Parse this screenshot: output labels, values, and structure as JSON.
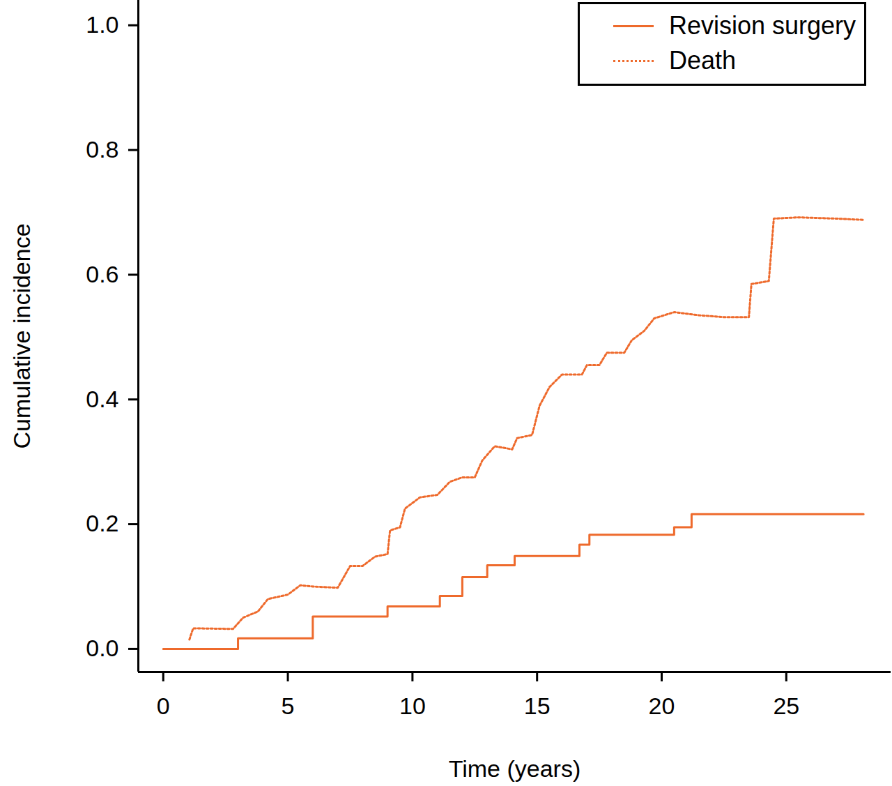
{
  "chart_data": {
    "type": "line",
    "xlabel": "Time (years)",
    "ylabel": "Cumulative incidence",
    "xlim": [
      -1,
      29.2
    ],
    "ylim": [
      -0.037,
      1.04
    ],
    "xticks": [
      0,
      5,
      10,
      15,
      20,
      25
    ],
    "yticks": [
      {
        "value": 0,
        "label": "0.0"
      },
      {
        "value": 0.2,
        "label": "0.2"
      },
      {
        "value": 0.4,
        "label": "0.4"
      },
      {
        "value": 0.6,
        "label": "0.6"
      },
      {
        "value": 0.8,
        "label": "0.8"
      },
      {
        "value": 1,
        "label": "1.0"
      }
    ],
    "grid": false,
    "legend": "top-right",
    "series": [
      {
        "name": "Revision surgery",
        "color": "#ee6a2c",
        "type": "step",
        "line_style": "solid",
        "x": [
          0,
          3.0,
          6.0,
          9.0,
          11.1,
          12.0,
          13.0,
          14.1,
          16.7,
          17.1,
          20.5,
          21.2,
          28.1
        ],
        "values": [
          0,
          0.017,
          0.052,
          0.068,
          0.085,
          0.115,
          0.134,
          0.149,
          0.167,
          0.183,
          0.195,
          0.216,
          0.216
        ]
      },
      {
        "name": "Death",
        "color": "#ee6a2c",
        "type": "line",
        "line_style": "dotted",
        "x": [
          1.05,
          1.2,
          2.8,
          3.2,
          3.8,
          4.2,
          5.0,
          5.5,
          6.0,
          7.0,
          7.5,
          8.0,
          8.5,
          9.0,
          9.1,
          9.5,
          9.7,
          10.3,
          11.0,
          11.5,
          12.0,
          12.5,
          12.8,
          13.3,
          14.0,
          14.2,
          14.8,
          15.1,
          15.5,
          16.0,
          16.8,
          17.0,
          17.5,
          17.8,
          18.5,
          18.8,
          19.3,
          19.7,
          20.5,
          21.5,
          22.5,
          23.5,
          23.6,
          24.3,
          24.5,
          25.5,
          27.0,
          28.1
        ],
        "values": [
          0.015,
          0.033,
          0.032,
          0.05,
          0.06,
          0.08,
          0.087,
          0.102,
          0.1,
          0.098,
          0.133,
          0.133,
          0.148,
          0.152,
          0.19,
          0.195,
          0.225,
          0.243,
          0.247,
          0.268,
          0.275,
          0.275,
          0.302,
          0.325,
          0.32,
          0.338,
          0.343,
          0.39,
          0.42,
          0.44,
          0.44,
          0.455,
          0.455,
          0.475,
          0.475,
          0.495,
          0.51,
          0.53,
          0.54,
          0.535,
          0.532,
          0.532,
          0.585,
          0.59,
          0.69,
          0.692,
          0.69,
          0.688
        ]
      }
    ]
  }
}
